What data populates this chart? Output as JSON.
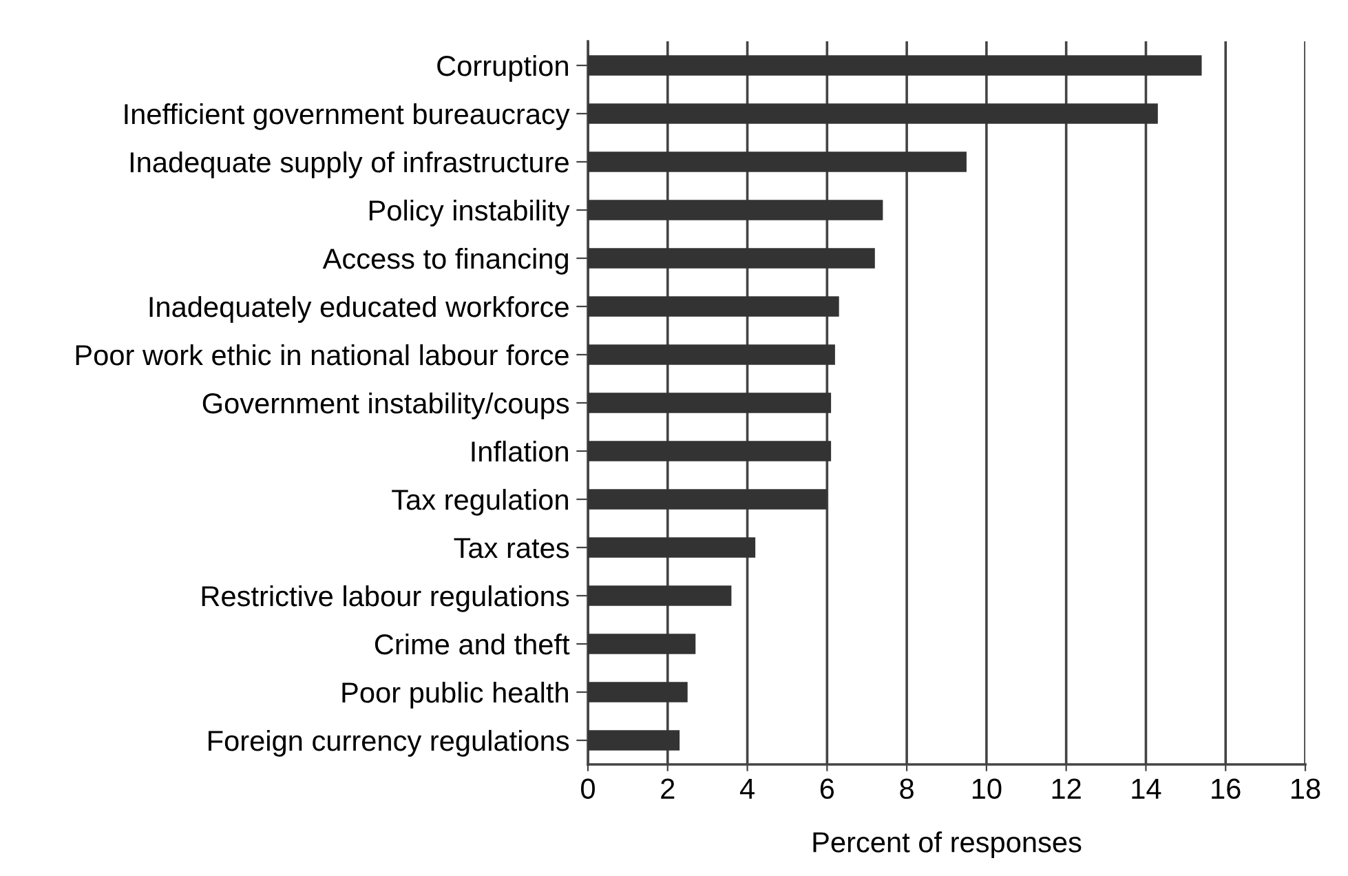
{
  "chart_data": {
    "type": "bar",
    "orientation": "horizontal",
    "xlabel": "Percent of responses",
    "categories": [
      "Corruption",
      "Inefficient government bureaucracy",
      "Inadequate supply of infrastructure",
      "Policy instability",
      "Access to financing",
      "Inadequately educated workforce",
      "Poor work ethic in national labour force",
      "Government instability/coups",
      "Inflation",
      "Tax regulation",
      "Tax rates",
      "Restrictive labour regulations",
      "Crime and theft",
      "Poor public health",
      "Foreign currency regulations"
    ],
    "values": [
      15.4,
      14.3,
      9.5,
      7.4,
      7.2,
      6.3,
      6.2,
      6.1,
      6.1,
      6.0,
      4.2,
      3.6,
      2.7,
      2.5,
      2.3
    ],
    "color": "#333333",
    "xlim": [
      0,
      18
    ],
    "xticks": [
      0,
      2,
      4,
      6,
      8,
      10,
      12,
      14,
      16,
      18
    ],
    "grid": "x",
    "legend": false
  }
}
